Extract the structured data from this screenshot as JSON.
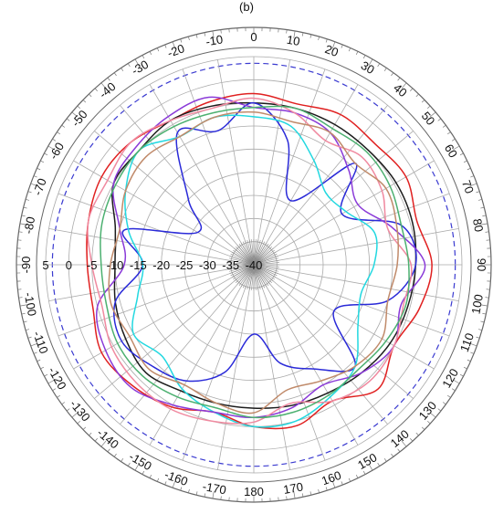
{
  "chart_data": {
    "type": "polar",
    "top_label": "(b)",
    "angular_tick_labels": [
      "0",
      "10",
      "20",
      "30",
      "40",
      "50",
      "60",
      "70",
      "80",
      "90",
      "100",
      "110",
      "120",
      "130",
      "140",
      "150",
      "160",
      "170",
      "180",
      "-170",
      "-160",
      "-150",
      "-140",
      "-130",
      "-120",
      "-110",
      "-100",
      "-90",
      "-80",
      "-70",
      "-60",
      "-50",
      "-40",
      "-30",
      "-20",
      "-10"
    ],
    "angular_ticks_deg": [
      0,
      10,
      20,
      30,
      40,
      50,
      60,
      70,
      80,
      90,
      100,
      110,
      120,
      130,
      140,
      150,
      160,
      170,
      180,
      -170,
      -160,
      -150,
      -140,
      -130,
      -120,
      -110,
      -100,
      -90,
      -80,
      -70,
      -60,
      -50,
      -40,
      -30,
      -20,
      -10
    ],
    "radial_tick_labels": [
      "5",
      "0",
      "-5",
      "-10",
      "-15",
      "-20",
      "-25",
      "-30",
      "-35",
      "-40"
    ],
    "radial_ticks": [
      5,
      0,
      -5,
      -10,
      -15,
      -20,
      -25,
      -30,
      -35,
      -40
    ],
    "rlim": [
      -40,
      5
    ],
    "reference_circle_db": 0,
    "grid": true,
    "series": [
      {
        "color": "#e02020",
        "theta": [
          0,
          15,
          30,
          45,
          60,
          75,
          90,
          105,
          120,
          135,
          150,
          165,
          180,
          -165,
          -150,
          -135,
          -120,
          -105,
          -90,
          -75,
          -60,
          -45,
          -30,
          -15
        ],
        "r": [
          -3,
          -4,
          -2.5,
          -3,
          -2,
          -3.5,
          -1.5,
          -3,
          -5,
          -2,
          -6,
          -4,
          -5,
          -7,
          -4.5,
          -3,
          -2,
          -4,
          -4,
          -3,
          -2,
          -2.5,
          -4,
          -3.5
        ]
      },
      {
        "color": "#1c1c1c",
        "theta": [
          0,
          15,
          30,
          45,
          60,
          75,
          90,
          105,
          120,
          135,
          150,
          165,
          180,
          -165,
          -150,
          -135,
          -120,
          -105,
          -90,
          -75,
          -60,
          -45,
          -30,
          -15
        ],
        "r": [
          -5,
          -5,
          -5,
          -5,
          -4.5,
          -4.5,
          -5,
          -5.5,
          -6,
          -7,
          -8,
          -8.5,
          -9,
          -9,
          -8.5,
          -7,
          -8,
          -9,
          -10,
          -9,
          -5,
          -5,
          -4,
          -4.5
        ]
      },
      {
        "color": "#2a2ad8",
        "theta": [
          0,
          15,
          30,
          45,
          60,
          75,
          90,
          105,
          120,
          135,
          150,
          165,
          180,
          -165,
          -150,
          -135,
          -120,
          -105,
          -90,
          -75,
          -60,
          -45,
          -30,
          -15
        ],
        "r": [
          -5,
          -12,
          -24,
          -9,
          -18,
          -7,
          -5,
          -10,
          -20,
          -9,
          -14,
          -18,
          -25,
          -16,
          -11,
          -9,
          -7,
          -9,
          -16,
          -11,
          -26,
          -20,
          -7,
          -10
        ]
      },
      {
        "color": "#22d8e0",
        "theta": [
          0,
          15,
          30,
          45,
          60,
          75,
          90,
          105,
          120,
          135,
          150,
          165,
          180,
          -165,
          -150,
          -135,
          -120,
          -105,
          -90,
          -75,
          -60,
          -45,
          -30,
          -15
        ],
        "r": [
          -8,
          -9,
          -14,
          -18,
          -17,
          -13,
          -14,
          -16,
          -14,
          -9,
          -7,
          -5,
          -5,
          -7,
          -9,
          -12,
          -10,
          -14,
          -16,
          -12,
          -8,
          -5,
          -8,
          -7
        ]
      },
      {
        "color": "#8a3ad8",
        "theta": [
          0,
          15,
          30,
          45,
          60,
          75,
          90,
          105,
          120,
          135,
          150,
          165,
          180,
          -165,
          -150,
          -135,
          -120,
          -105,
          -90,
          -75,
          -60,
          -45,
          -30,
          -15
        ],
        "r": [
          -6,
          -6,
          -7,
          -11,
          -14,
          -9,
          -3,
          -7,
          -5,
          -7,
          -10,
          -8,
          -7,
          -7,
          -5,
          -2.5,
          -3,
          -5,
          -12,
          -10,
          -5,
          -4,
          -3,
          -2.5
        ]
      },
      {
        "color": "#f08aa0",
        "theta": [
          0,
          15,
          30,
          45,
          60,
          75,
          90,
          105,
          120,
          135,
          150,
          165,
          180,
          -165,
          -150,
          -135,
          -120,
          -105,
          -90,
          -75,
          -60,
          -45,
          -30,
          -15
        ],
        "r": [
          -4,
          -6,
          -9,
          -7,
          -8,
          -10,
          -6,
          -6.5,
          -5,
          -4.5,
          -6,
          -9,
          -6,
          -5,
          -4,
          -4,
          -4.5,
          -6,
          -5,
          -3,
          -3.5,
          -2.5,
          -4,
          -5
        ]
      },
      {
        "color": "#4cb070",
        "theta": [
          0,
          15,
          30,
          45,
          60,
          75,
          90,
          105,
          120,
          135,
          150,
          165,
          180,
          -165,
          -150,
          -135,
          -120,
          -105,
          -90,
          -75,
          -60,
          -45,
          -30,
          -15
        ],
        "r": [
          -6,
          -5,
          -6,
          -5.5,
          -6,
          -7,
          -6.5,
          -6,
          -7,
          -8,
          -7.5,
          -7,
          -7,
          -8,
          -7,
          -6,
          -6,
          -7,
          -7,
          -6,
          -5.5,
          -5,
          -5.5,
          -6
        ]
      },
      {
        "color": "#c08a6a",
        "theta": [
          0,
          15,
          30,
          45,
          60,
          75,
          90,
          105,
          120,
          135,
          150,
          165,
          180,
          -165,
          -150,
          -135,
          -120,
          -105,
          -90,
          -75,
          -60,
          -45,
          -30,
          -15
        ],
        "r": [
          -7,
          -8,
          -7,
          -9,
          -7,
          -8,
          -9,
          -10,
          -8,
          -9,
          -11,
          -12,
          -8,
          -9,
          -10,
          -8,
          -9,
          -8,
          -9,
          -10,
          -8,
          -7,
          -8,
          -7
        ]
      }
    ]
  }
}
